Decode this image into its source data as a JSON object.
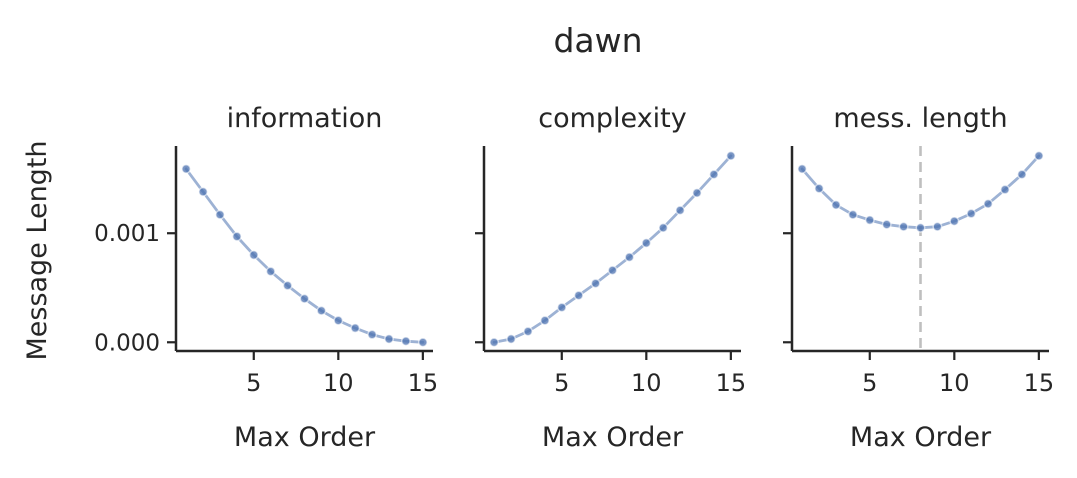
{
  "figure": {
    "title": "dawn"
  },
  "colors": {
    "series": "#4c72b0",
    "axis": "#262626",
    "reference_line": "#bfbfbf"
  },
  "chart_data": [
    {
      "type": "line",
      "title": "information",
      "xlabel": "Max Order",
      "ylabel": "Message Length",
      "xticks": [
        5,
        10,
        15
      ],
      "yticks": [
        0.0,
        0.001
      ],
      "ytick_labels": [
        "0.000",
        "0.001"
      ],
      "xlim": [
        0.4,
        15.6
      ],
      "ylim": [
        -8e-05,
        0.0018
      ],
      "x": [
        1,
        2,
        3,
        4,
        5,
        6,
        7,
        8,
        9,
        10,
        11,
        12,
        13,
        14,
        15
      ],
      "series": [
        {
          "values": [
            0.00159,
            0.00138,
            0.00117,
            0.00097,
            0.0008,
            0.00065,
            0.00052,
            0.0004,
            0.00029,
            0.0002,
            0.00013,
            7e-05,
            3e-05,
            1e-05,
            0.0
          ]
        }
      ],
      "grid": false
    },
    {
      "type": "line",
      "title": "complexity",
      "xlabel": "Max Order",
      "ylabel": "",
      "xticks": [
        5,
        10,
        15
      ],
      "yticks": [
        0.0,
        0.001
      ],
      "ytick_labels": [
        "",
        ""
      ],
      "xlim": [
        0.4,
        15.6
      ],
      "ylim": [
        -8e-05,
        0.0018
      ],
      "x": [
        1,
        2,
        3,
        4,
        5,
        6,
        7,
        8,
        9,
        10,
        11,
        12,
        13,
        14,
        15
      ],
      "series": [
        {
          "values": [
            0.0,
            3e-05,
            0.0001,
            0.0002,
            0.00032,
            0.00043,
            0.00054,
            0.00066,
            0.00078,
            0.00091,
            0.00105,
            0.00121,
            0.00137,
            0.00154,
            0.00171
          ]
        }
      ],
      "grid": false
    },
    {
      "type": "line",
      "title": "mess. length",
      "xlabel": "Max Order",
      "ylabel": "",
      "xticks": [
        5,
        10,
        15
      ],
      "yticks": [
        0.0,
        0.001
      ],
      "ytick_labels": [
        "",
        ""
      ],
      "xlim": [
        0.4,
        15.6
      ],
      "ylim": [
        -8e-05,
        0.0018
      ],
      "x": [
        1,
        2,
        3,
        4,
        5,
        6,
        7,
        8,
        9,
        10,
        11,
        12,
        13,
        14,
        15
      ],
      "series": [
        {
          "values": [
            0.00159,
            0.00141,
            0.00126,
            0.00117,
            0.00112,
            0.00108,
            0.00106,
            0.00105,
            0.00106,
            0.00111,
            0.00118,
            0.00127,
            0.0014,
            0.00154,
            0.00171
          ]
        }
      ],
      "vline_x": 8,
      "grid": false
    }
  ]
}
